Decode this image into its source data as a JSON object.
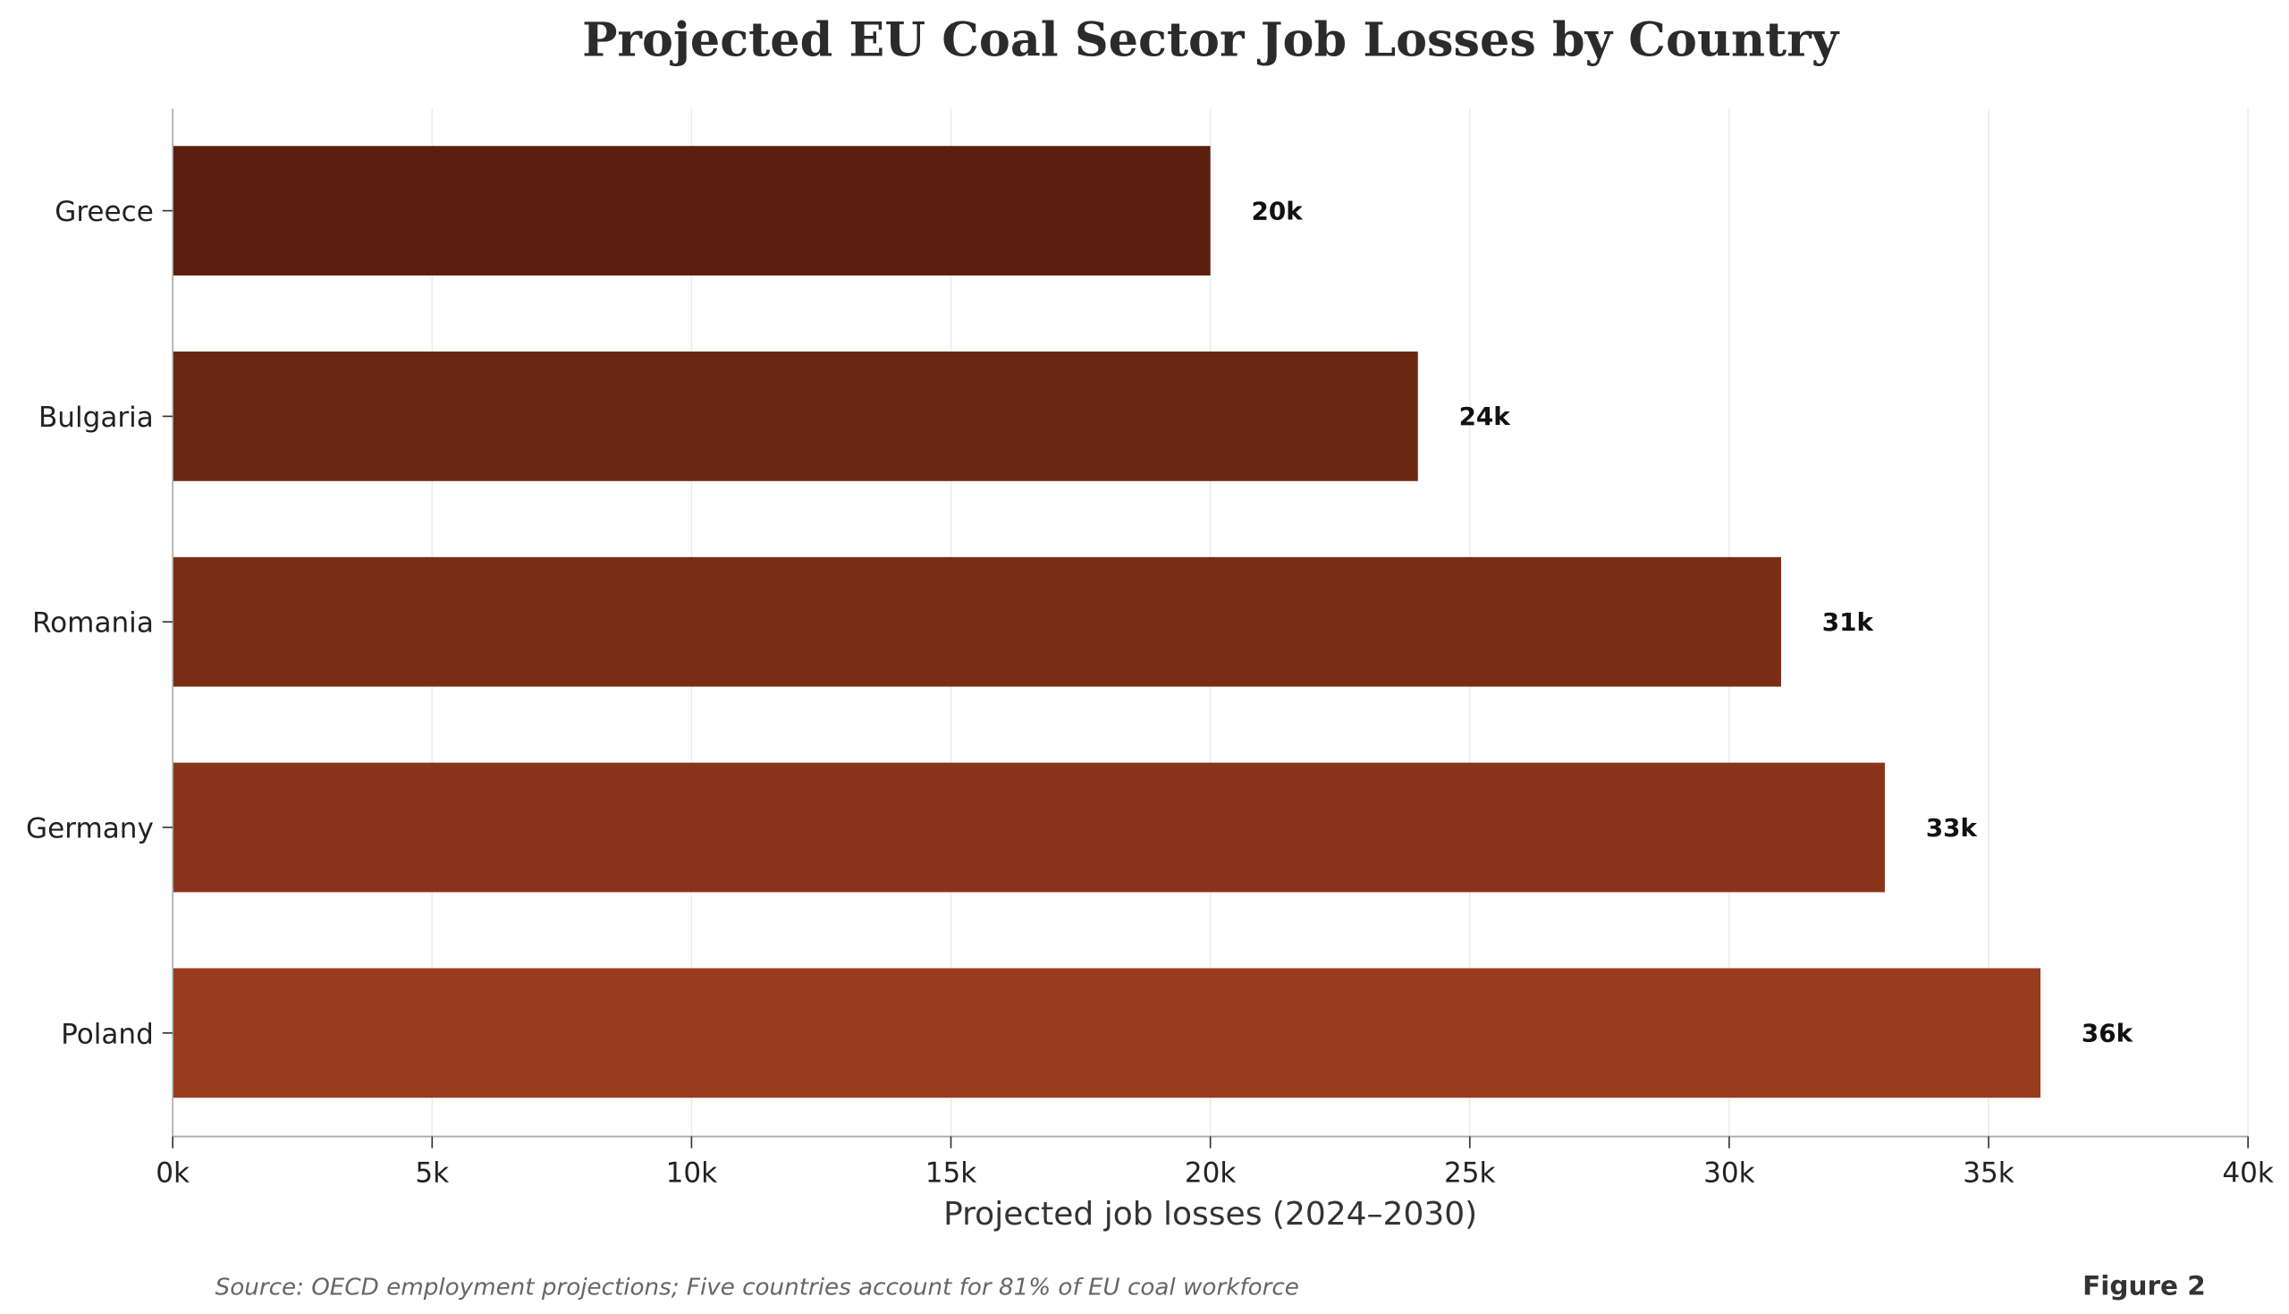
{
  "chart_data": {
    "type": "bar",
    "orientation": "horizontal",
    "title": "Projected EU Coal Sector Job Losses by Country",
    "xlabel": "Projected job losses (2024–2030)",
    "ylabel": "",
    "categories": [
      "Greece",
      "Bulgaria",
      "Romania",
      "Germany",
      "Poland"
    ],
    "values": [
      20000,
      24000,
      31000,
      33000,
      36000
    ],
    "data_labels": [
      "20k",
      "24k",
      "31k",
      "33k",
      "36k"
    ],
    "colors": [
      "#5c1f0f",
      "#6a2714",
      "#7a2d15",
      "#89341a",
      "#983b1f"
    ],
    "xlim": [
      0,
      40000
    ],
    "xticks": [
      0,
      5000,
      10000,
      15000,
      20000,
      25000,
      30000,
      35000,
      40000
    ],
    "xtick_labels": [
      "0k",
      "5k",
      "10k",
      "15k",
      "20k",
      "25k",
      "30k",
      "35k",
      "40k"
    ],
    "grid": "vertical",
    "legend": "none"
  },
  "footer": {
    "source": "Source: OECD employment projections; Five countries account for 81% of EU coal workforce",
    "figure_label": "Figure 2"
  }
}
